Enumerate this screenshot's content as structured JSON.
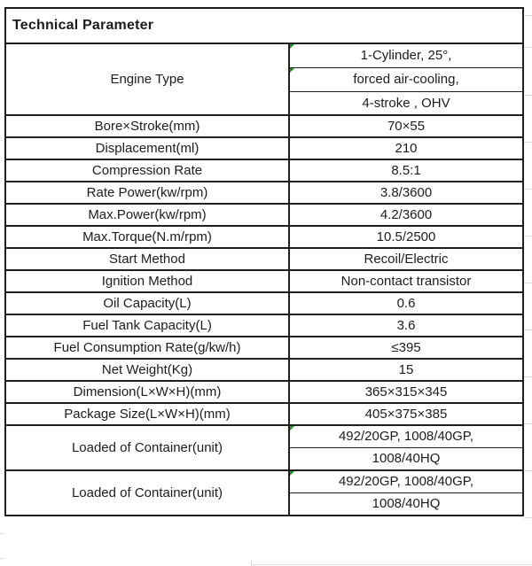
{
  "table": {
    "title": "Technical Parameter",
    "columns": [
      "parameter",
      "value"
    ],
    "rows": [
      {
        "label": "Engine Type",
        "values": [
          "1-Cylinder, 25°,",
          "forced air-cooling,",
          "4-stroke , OHV"
        ],
        "flagged": [
          true,
          true,
          false
        ]
      },
      {
        "label": "Bore×Stroke(mm)",
        "values": [
          "70×55"
        ],
        "flagged": [
          false
        ]
      },
      {
        "label": "Displacement(ml)",
        "values": [
          "210"
        ],
        "flagged": [
          false
        ]
      },
      {
        "label": "Compression Rate",
        "values": [
          "8.5:1"
        ],
        "flagged": [
          false
        ]
      },
      {
        "label": "Rate Power(kw/rpm)",
        "values": [
          "3.8/3600"
        ],
        "flagged": [
          false
        ]
      },
      {
        "label": "Max.Power(kw/rpm)",
        "values": [
          "4.2/3600"
        ],
        "flagged": [
          false
        ]
      },
      {
        "label": "Max.Torque(N.m/rpm)",
        "values": [
          "10.5/2500"
        ],
        "flagged": [
          false
        ]
      },
      {
        "label": "Start Method",
        "values": [
          "Recoil/Electric"
        ],
        "flagged": [
          false
        ]
      },
      {
        "label": "Ignition Method",
        "values": [
          "Non-contact transistor"
        ],
        "flagged": [
          false
        ]
      },
      {
        "label": "Oil Capacity(L)",
        "values": [
          "0.6"
        ],
        "flagged": [
          false
        ]
      },
      {
        "label": "Fuel Tank Capacity(L)",
        "values": [
          "3.6"
        ],
        "flagged": [
          false
        ]
      },
      {
        "label": "Fuel Consumption Rate(g/kw/h)",
        "values": [
          "≤395"
        ],
        "flagged": [
          false
        ]
      },
      {
        "label": "Net Weight(Kg)",
        "values": [
          "15"
        ],
        "flagged": [
          false
        ]
      },
      {
        "label": "Dimension(L×W×H)(mm)",
        "values": [
          "365×315×345"
        ],
        "flagged": [
          false
        ]
      },
      {
        "label": "Package Size(L×W×H)(mm)",
        "values": [
          "405×375×385"
        ],
        "flagged": [
          false
        ]
      },
      {
        "label": "Loaded of Container(unit)",
        "values": [
          "492/20GP, 1008/40GP,",
          "1008/40HQ"
        ],
        "flagged": [
          true,
          false
        ]
      },
      {
        "label": "Loaded of Container(unit)",
        "values": [
          "492/20GP, 1008/40GP,",
          "1008/40HQ"
        ],
        "flagged": [
          true,
          false
        ]
      }
    ],
    "icons": {
      "cell_flag": "green-corner-triangle-icon"
    },
    "colors": {
      "border": "#1f1f1f",
      "text": "#1c1c1c",
      "flag_green": "#0f9c0f",
      "gridline": "#dcdcdc",
      "background": "#ffffff"
    }
  }
}
